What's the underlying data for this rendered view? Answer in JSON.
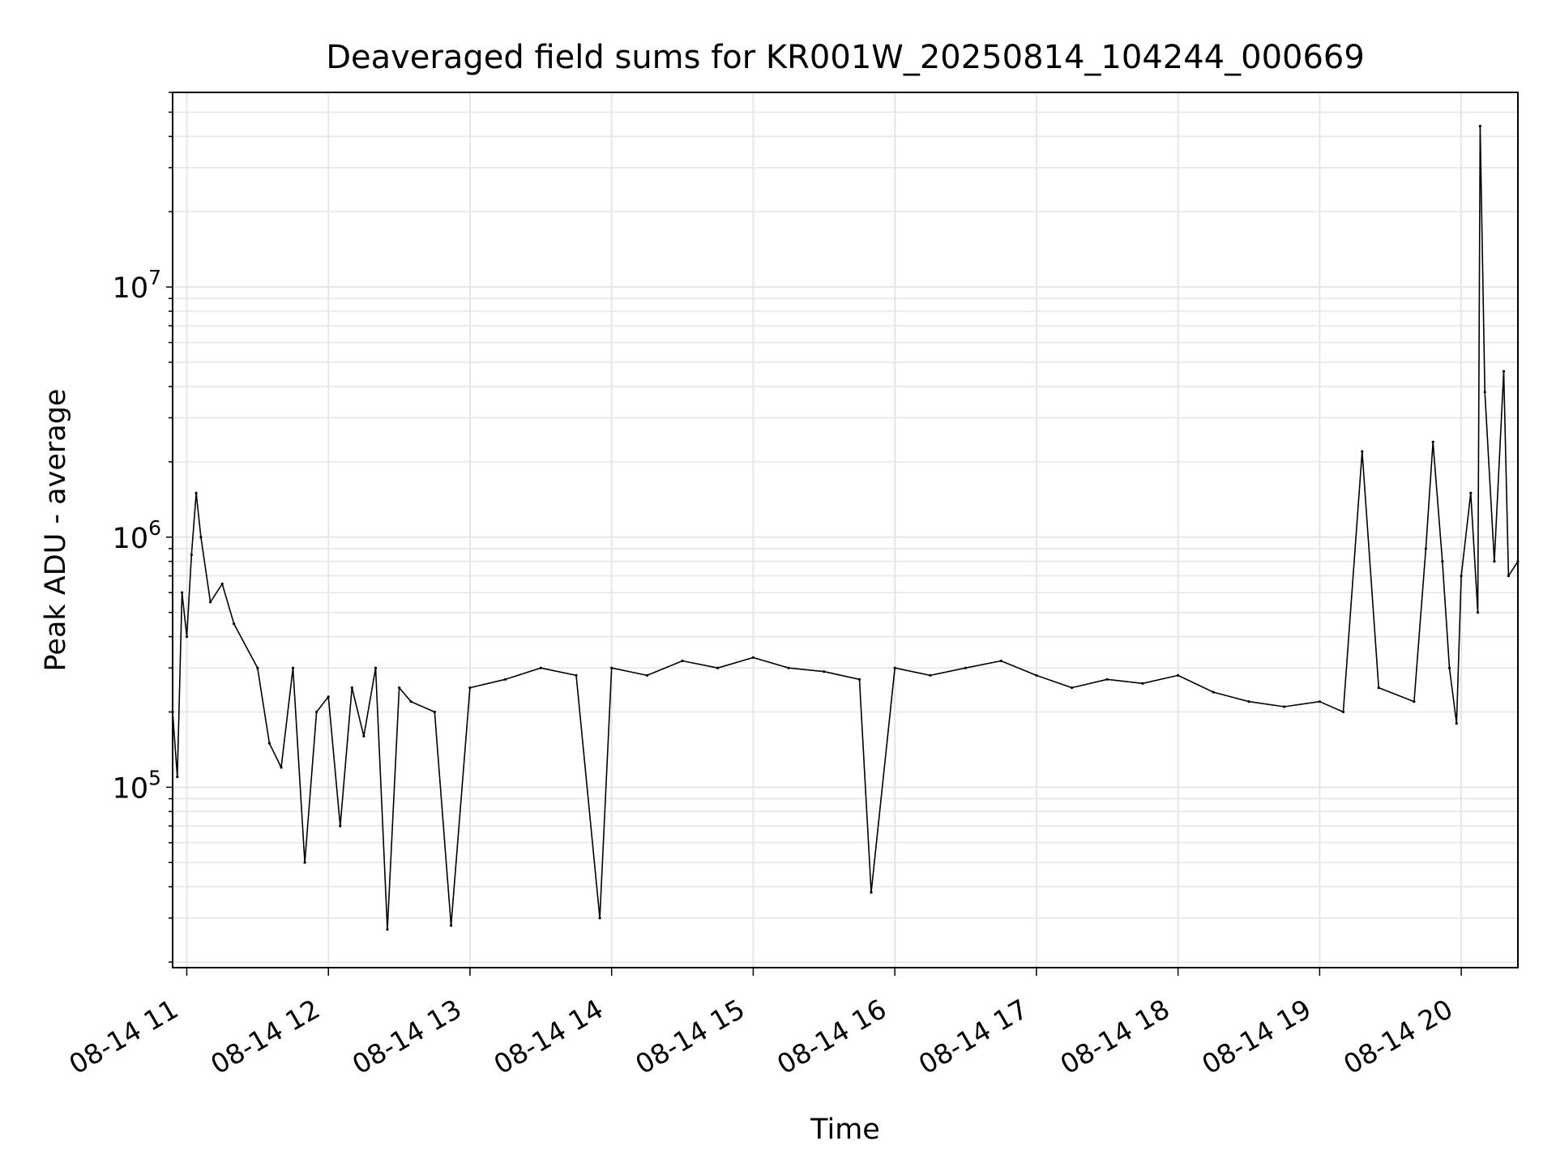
{
  "chart_data": {
    "type": "line",
    "title": "Deaveraged field sums for KR001W_20250814_104244_000669",
    "xlabel": "Time",
    "ylabel": "Peak ADU - average",
    "y_scale": "log",
    "ylim": [
      19000,
      60000000
    ],
    "xlim": [
      "2025-08-14 10:54",
      "2025-08-14 20:24"
    ],
    "grid": "both, major and minor, light gray",
    "x_ticks": [
      {
        "label": "08-14 11",
        "time": "2025-08-14 11:00"
      },
      {
        "label": "08-14 12",
        "time": "2025-08-14 12:00"
      },
      {
        "label": "08-14 13",
        "time": "2025-08-14 13:00"
      },
      {
        "label": "08-14 14",
        "time": "2025-08-14 14:00"
      },
      {
        "label": "08-14 15",
        "time": "2025-08-14 15:00"
      },
      {
        "label": "08-14 16",
        "time": "2025-08-14 16:00"
      },
      {
        "label": "08-14 17",
        "time": "2025-08-14 17:00"
      },
      {
        "label": "08-14 18",
        "time": "2025-08-14 18:00"
      },
      {
        "label": "08-14 19",
        "time": "2025-08-14 19:00"
      },
      {
        "label": "08-14 20",
        "time": "2025-08-14 20:00"
      }
    ],
    "y_ticks": [
      {
        "base": "10",
        "exp": "5",
        "value": 100000
      },
      {
        "base": "10",
        "exp": "6",
        "value": 1000000
      },
      {
        "base": "10",
        "exp": "7",
        "value": 10000000
      }
    ],
    "series": [
      {
        "color": "#000000",
        "points": [
          [
            "2025-08-14 10:54",
            200000
          ],
          [
            "2025-08-14 10:56",
            110000
          ],
          [
            "2025-08-14 10:58",
            600000
          ],
          [
            "2025-08-14 11:00",
            400000
          ],
          [
            "2025-08-14 11:02",
            850000
          ],
          [
            "2025-08-14 11:04",
            1500000
          ],
          [
            "2025-08-14 11:06",
            1000000
          ],
          [
            "2025-08-14 11:10",
            550000
          ],
          [
            "2025-08-14 11:15",
            650000
          ],
          [
            "2025-08-14 11:20",
            450000
          ],
          [
            "2025-08-14 11:30",
            300000
          ],
          [
            "2025-08-14 11:35",
            150000
          ],
          [
            "2025-08-14 11:40",
            120000
          ],
          [
            "2025-08-14 11:45",
            300000
          ],
          [
            "2025-08-14 11:50",
            50000
          ],
          [
            "2025-08-14 11:55",
            200000
          ],
          [
            "2025-08-14 12:00",
            230000
          ],
          [
            "2025-08-14 12:05",
            70000
          ],
          [
            "2025-08-14 12:10",
            250000
          ],
          [
            "2025-08-14 12:15",
            160000
          ],
          [
            "2025-08-14 12:20",
            300000
          ],
          [
            "2025-08-14 12:25",
            27000
          ],
          [
            "2025-08-14 12:30",
            250000
          ],
          [
            "2025-08-14 12:35",
            220000
          ],
          [
            "2025-08-14 12:45",
            200000
          ],
          [
            "2025-08-14 12:52",
            28000
          ],
          [
            "2025-08-14 13:00",
            250000
          ],
          [
            "2025-08-14 13:15",
            270000
          ],
          [
            "2025-08-14 13:30",
            300000
          ],
          [
            "2025-08-14 13:45",
            280000
          ],
          [
            "2025-08-14 13:55",
            30000
          ],
          [
            "2025-08-14 14:00",
            300000
          ],
          [
            "2025-08-14 14:15",
            280000
          ],
          [
            "2025-08-14 14:30",
            320000
          ],
          [
            "2025-08-14 14:45",
            300000
          ],
          [
            "2025-08-14 15:00",
            330000
          ],
          [
            "2025-08-14 15:15",
            300000
          ],
          [
            "2025-08-14 15:30",
            290000
          ],
          [
            "2025-08-14 15:45",
            270000
          ],
          [
            "2025-08-14 15:50",
            38000
          ],
          [
            "2025-08-14 16:00",
            300000
          ],
          [
            "2025-08-14 16:15",
            280000
          ],
          [
            "2025-08-14 16:30",
            300000
          ],
          [
            "2025-08-14 16:45",
            320000
          ],
          [
            "2025-08-14 17:00",
            280000
          ],
          [
            "2025-08-14 17:15",
            250000
          ],
          [
            "2025-08-14 17:30",
            270000
          ],
          [
            "2025-08-14 17:45",
            260000
          ],
          [
            "2025-08-14 18:00",
            280000
          ],
          [
            "2025-08-14 18:15",
            240000
          ],
          [
            "2025-08-14 18:30",
            220000
          ],
          [
            "2025-08-14 18:45",
            210000
          ],
          [
            "2025-08-14 19:00",
            220000
          ],
          [
            "2025-08-14 19:10",
            200000
          ],
          [
            "2025-08-14 19:18",
            2200000
          ],
          [
            "2025-08-14 19:25",
            250000
          ],
          [
            "2025-08-14 19:40",
            220000
          ],
          [
            "2025-08-14 19:45",
            900000
          ],
          [
            "2025-08-14 19:48",
            2400000
          ],
          [
            "2025-08-14 19:52",
            800000
          ],
          [
            "2025-08-14 19:55",
            300000
          ],
          [
            "2025-08-14 19:58",
            180000
          ],
          [
            "2025-08-14 20:00",
            700000
          ],
          [
            "2025-08-14 20:04",
            1500000
          ],
          [
            "2025-08-14 20:07",
            500000
          ],
          [
            "2025-08-14 20:08",
            44000000
          ],
          [
            "2025-08-14 20:10",
            3800000
          ],
          [
            "2025-08-14 20:14",
            800000
          ],
          [
            "2025-08-14 20:18",
            4600000
          ],
          [
            "2025-08-14 20:20",
            700000
          ],
          [
            "2025-08-14 20:24",
            800000
          ]
        ]
      }
    ]
  }
}
